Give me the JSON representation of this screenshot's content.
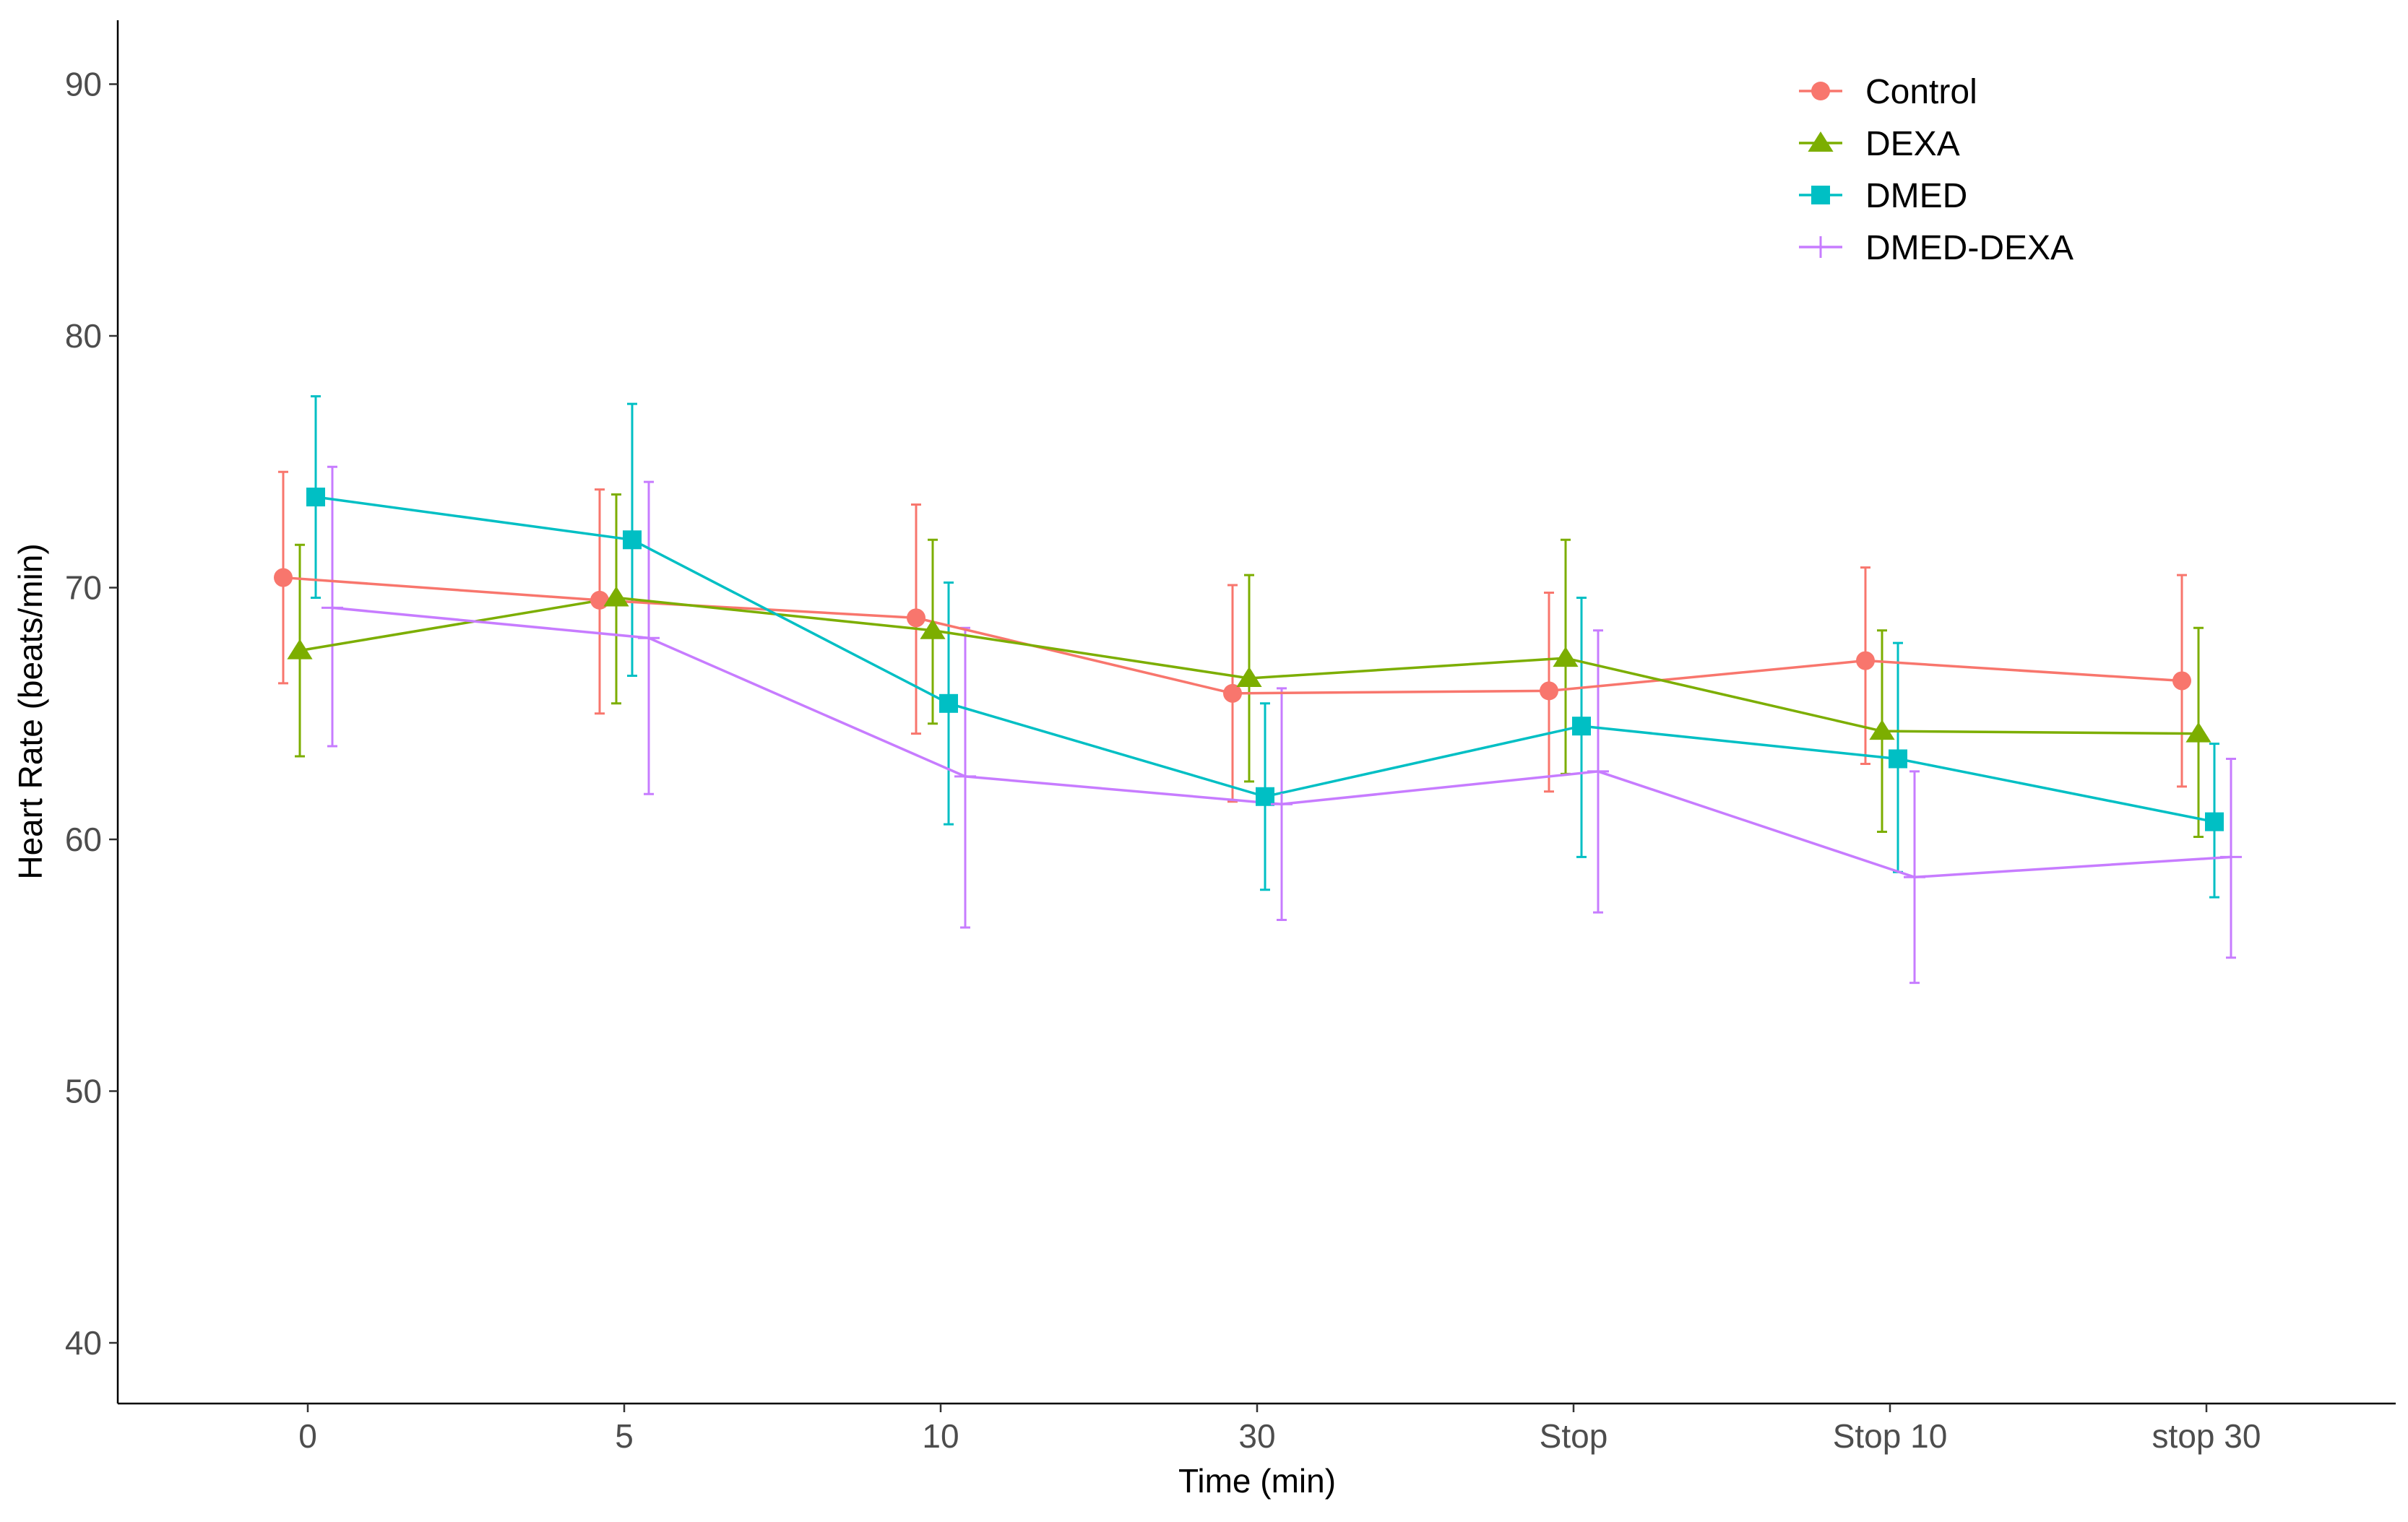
{
  "chart_data": {
    "type": "line",
    "title": "",
    "xlabel": "Time (min)",
    "ylabel": "Heart Rate (beats/min)",
    "categories": [
      "0",
      "5",
      "10",
      "30",
      "Stop",
      "Stop 10",
      "stop 30"
    ],
    "ylim": [
      37.5,
      92.5
    ],
    "yticks": [
      40,
      50,
      60,
      70,
      80,
      90
    ],
    "grid": false,
    "legend_position": "top-right",
    "series": [
      {
        "name": "Control",
        "color": "#F8766D",
        "marker": "circle",
        "values": [
          70.4,
          69.5,
          68.8,
          65.8,
          65.9,
          67.1,
          66.3
        ],
        "err_low": [
          66.2,
          65.0,
          64.2,
          61.5,
          61.9,
          63.0,
          62.1
        ],
        "err_high": [
          74.6,
          73.9,
          73.3,
          70.1,
          69.8,
          70.8,
          70.5
        ]
      },
      {
        "name": "DEXA",
        "color": "#7CAE00",
        "marker": "triangle",
        "values": [
          67.5,
          69.6,
          68.3,
          66.4,
          67.2,
          64.3,
          64.2
        ],
        "err_low": [
          63.3,
          65.4,
          64.6,
          62.3,
          62.6,
          60.3,
          60.1
        ],
        "err_high": [
          71.7,
          73.7,
          71.9,
          70.5,
          71.9,
          68.3,
          68.4
        ]
      },
      {
        "name": "DMED",
        "color": "#00BFC4",
        "marker": "square",
        "values": [
          73.6,
          71.9,
          65.4,
          61.7,
          64.5,
          63.2,
          60.7
        ],
        "err_low": [
          69.6,
          66.5,
          60.6,
          58.0,
          59.3,
          58.7,
          57.7
        ],
        "err_high": [
          77.6,
          77.3,
          70.2,
          65.4,
          69.6,
          67.8,
          63.8
        ]
      },
      {
        "name": "DMED-DEXA",
        "color": "#C77CFF",
        "marker": "plus",
        "values": [
          69.2,
          68.0,
          62.5,
          61.4,
          62.7,
          58.5,
          59.3
        ],
        "err_low": [
          63.7,
          61.8,
          56.5,
          56.8,
          57.1,
          54.3,
          55.3
        ],
        "err_high": [
          74.8,
          74.2,
          68.4,
          66.0,
          68.3,
          62.7,
          63.2
        ]
      }
    ]
  }
}
